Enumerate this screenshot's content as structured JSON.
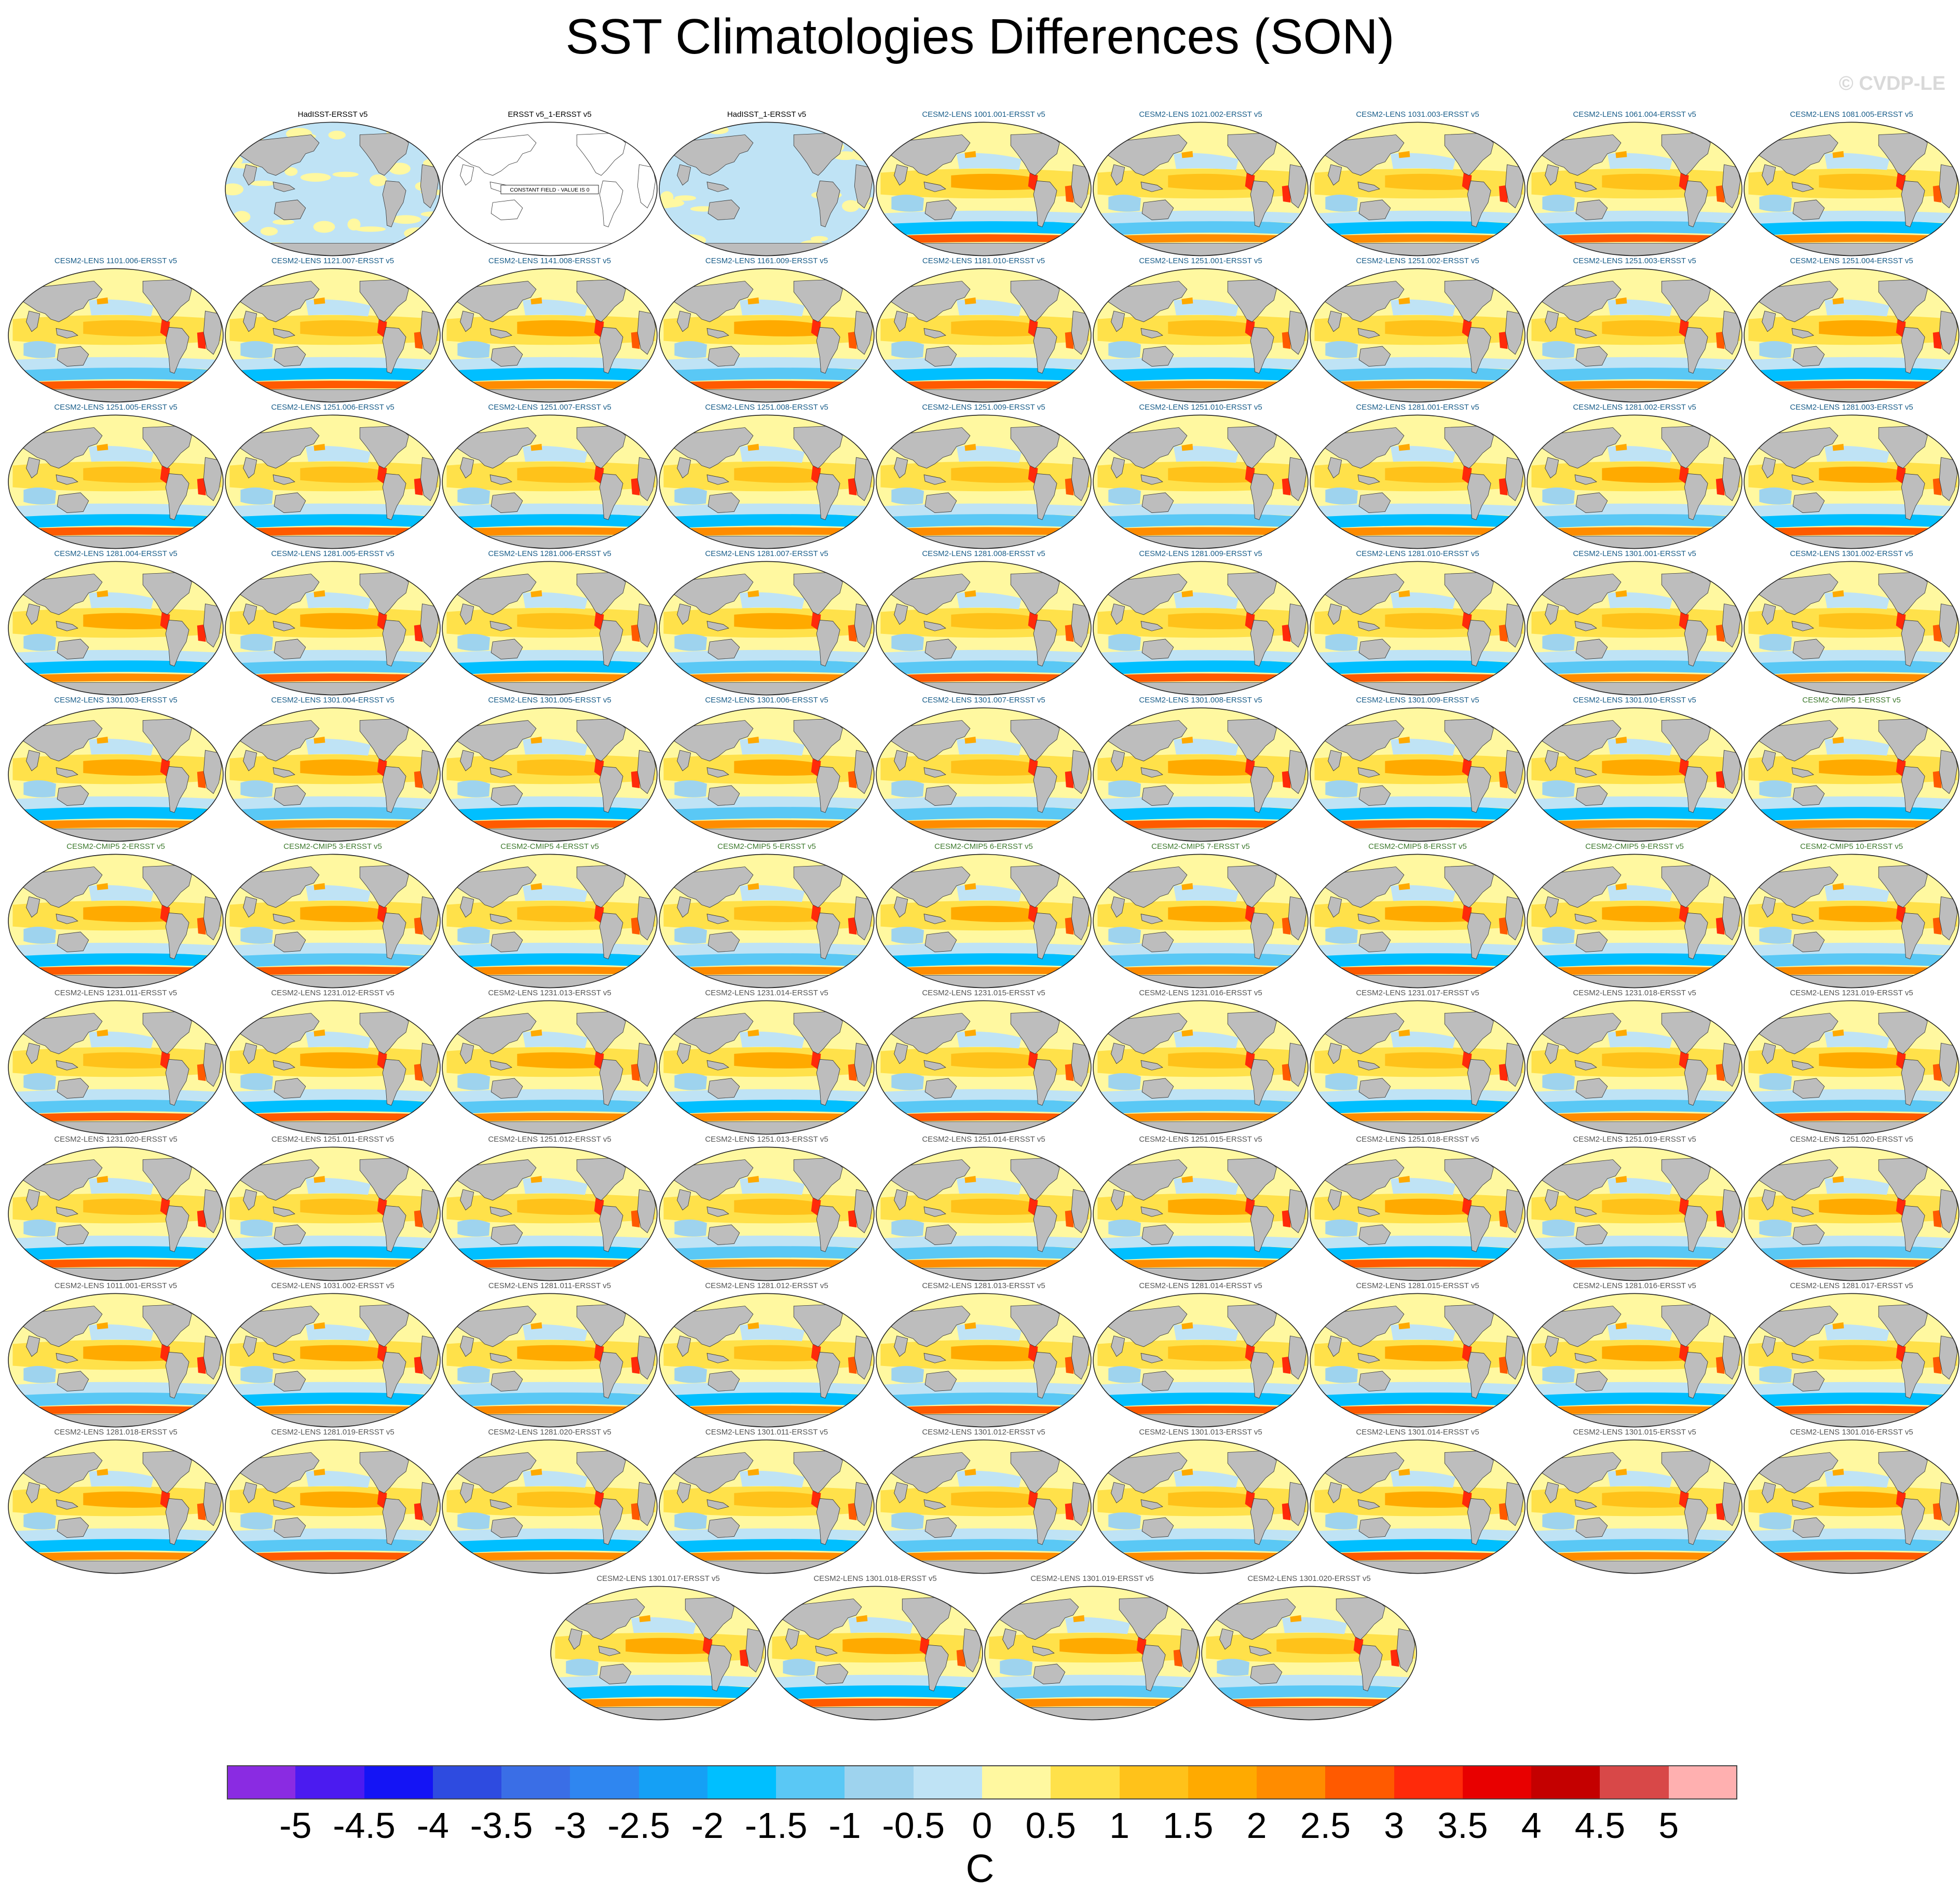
{
  "title": "SST Climatologies Differences (SON)",
  "watermark": "© CVDP-LE",
  "colors": {
    "land": "#bdbdbd",
    "text_obs": "#000000",
    "text_cesm_lens": "#1a5e8a",
    "text_cesm_cmip5": "#3e7a2e",
    "text_gray": "#555555"
  },
  "panels": [
    {
      "title": "HadISST-ERSST v5",
      "kind": "obs"
    },
    {
      "title": "ERSST v5_1-ERSST v5",
      "kind": "constant",
      "note": "CONSTANT FIELD - VALUE IS 0"
    },
    {
      "title": "HadISST_1-ERSST v5",
      "kind": "obs"
    },
    {
      "title": "CESM2-LENS 1001.001-ERSST v5",
      "kind": "model"
    },
    {
      "title": "CESM2-LENS 1021.002-ERSST v5",
      "kind": "model"
    },
    {
      "title": "CESM2-LENS 1031.003-ERSST v5",
      "kind": "model"
    },
    {
      "title": "CESM2-LENS 1061.004-ERSST v5",
      "kind": "model"
    },
    {
      "title": "CESM2-LENS 1081.005-ERSST v5",
      "kind": "model"
    },
    {
      "title": "CESM2-LENS 1101.006-ERSST v5",
      "kind": "model"
    },
    {
      "title": "CESM2-LENS 1121.007-ERSST v5",
      "kind": "model"
    },
    {
      "title": "CESM2-LENS 1141.008-ERSST v5",
      "kind": "model"
    },
    {
      "title": "CESM2-LENS 1161.009-ERSST v5",
      "kind": "model"
    },
    {
      "title": "CESM2-LENS 1181.010-ERSST v5",
      "kind": "model"
    },
    {
      "title": "CESM2-LENS 1251.001-ERSST v5",
      "kind": "model"
    },
    {
      "title": "CESM2-LENS 1251.002-ERSST v5",
      "kind": "model"
    },
    {
      "title": "CESM2-LENS 1251.003-ERSST v5",
      "kind": "model"
    },
    {
      "title": "CESM2-LENS 1251.004-ERSST v5",
      "kind": "model"
    },
    {
      "title": "CESM2-LENS 1251.005-ERSST v5",
      "kind": "model"
    },
    {
      "title": "CESM2-LENS 1251.006-ERSST v5",
      "kind": "model"
    },
    {
      "title": "CESM2-LENS 1251.007-ERSST v5",
      "kind": "model"
    },
    {
      "title": "CESM2-LENS 1251.008-ERSST v5",
      "kind": "model"
    },
    {
      "title": "CESM2-LENS 1251.009-ERSST v5",
      "kind": "model"
    },
    {
      "title": "CESM2-LENS 1251.010-ERSST v5",
      "kind": "model"
    },
    {
      "title": "CESM2-LENS 1281.001-ERSST v5",
      "kind": "model"
    },
    {
      "title": "CESM2-LENS 1281.002-ERSST v5",
      "kind": "model"
    },
    {
      "title": "CESM2-LENS 1281.003-ERSST v5",
      "kind": "model"
    },
    {
      "title": "CESM2-LENS 1281.004-ERSST v5",
      "kind": "model"
    },
    {
      "title": "CESM2-LENS 1281.005-ERSST v5",
      "kind": "model"
    },
    {
      "title": "CESM2-LENS 1281.006-ERSST v5",
      "kind": "model"
    },
    {
      "title": "CESM2-LENS 1281.007-ERSST v5",
      "kind": "model"
    },
    {
      "title": "CESM2-LENS 1281.008-ERSST v5",
      "kind": "model"
    },
    {
      "title": "CESM2-LENS 1281.009-ERSST v5",
      "kind": "model"
    },
    {
      "title": "CESM2-LENS 1281.010-ERSST v5",
      "kind": "model"
    },
    {
      "title": "CESM2-LENS 1301.001-ERSST v5",
      "kind": "model"
    },
    {
      "title": "CESM2-LENS 1301.002-ERSST v5",
      "kind": "model"
    },
    {
      "title": "CESM2-LENS 1301.003-ERSST v5",
      "kind": "model"
    },
    {
      "title": "CESM2-LENS 1301.004-ERSST v5",
      "kind": "model"
    },
    {
      "title": "CESM2-LENS 1301.005-ERSST v5",
      "kind": "model"
    },
    {
      "title": "CESM2-LENS 1301.006-ERSST v5",
      "kind": "model"
    },
    {
      "title": "CESM2-LENS 1301.007-ERSST v5",
      "kind": "model"
    },
    {
      "title": "CESM2-LENS 1301.008-ERSST v5",
      "kind": "model"
    },
    {
      "title": "CESM2-LENS 1301.009-ERSST v5",
      "kind": "model"
    },
    {
      "title": "CESM2-LENS 1301.010-ERSST v5",
      "kind": "model"
    },
    {
      "title": "CESM2-CMIP5 1-ERSST v5",
      "kind": "model"
    },
    {
      "title": "CESM2-CMIP5 2-ERSST v5",
      "kind": "model"
    },
    {
      "title": "CESM2-CMIP5 3-ERSST v5",
      "kind": "model"
    },
    {
      "title": "CESM2-CMIP5 4-ERSST v5",
      "kind": "model"
    },
    {
      "title": "CESM2-CMIP5 5-ERSST v5",
      "kind": "model"
    },
    {
      "title": "CESM2-CMIP5 6-ERSST v5",
      "kind": "model"
    },
    {
      "title": "CESM2-CMIP5 7-ERSST v5",
      "kind": "model"
    },
    {
      "title": "CESM2-CMIP5 8-ERSST v5",
      "kind": "model"
    },
    {
      "title": "CESM2-CMIP5 9-ERSST v5",
      "kind": "model"
    },
    {
      "title": "CESM2-CMIP5 10-ERSST v5",
      "kind": "model"
    },
    {
      "title": "CESM2-LENS 1231.011-ERSST v5",
      "kind": "model"
    },
    {
      "title": "CESM2-LENS 1231.012-ERSST v5",
      "kind": "model"
    },
    {
      "title": "CESM2-LENS 1231.013-ERSST v5",
      "kind": "model"
    },
    {
      "title": "CESM2-LENS 1231.014-ERSST v5",
      "kind": "model"
    },
    {
      "title": "CESM2-LENS 1231.015-ERSST v5",
      "kind": "model"
    },
    {
      "title": "CESM2-LENS 1231.016-ERSST v5",
      "kind": "model"
    },
    {
      "title": "CESM2-LENS 1231.017-ERSST v5",
      "kind": "model"
    },
    {
      "title": "CESM2-LENS 1231.018-ERSST v5",
      "kind": "model"
    },
    {
      "title": "CESM2-LENS 1231.019-ERSST v5",
      "kind": "model"
    },
    {
      "title": "CESM2-LENS 1231.020-ERSST v5",
      "kind": "model"
    },
    {
      "title": "CESM2-LENS 1251.011-ERSST v5",
      "kind": "model"
    },
    {
      "title": "CESM2-LENS 1251.012-ERSST v5",
      "kind": "model"
    },
    {
      "title": "CESM2-LENS 1251.013-ERSST v5",
      "kind": "model"
    },
    {
      "title": "CESM2-LENS 1251.014-ERSST v5",
      "kind": "model"
    },
    {
      "title": "CESM2-LENS 1251.015-ERSST v5",
      "kind": "model"
    },
    {
      "title": "CESM2-LENS 1251.018-ERSST v5",
      "kind": "model"
    },
    {
      "title": "CESM2-LENS 1251.019-ERSST v5",
      "kind": "model"
    },
    {
      "title": "CESM2-LENS 1251.020-ERSST v5",
      "kind": "model"
    },
    {
      "title": "CESM2-LENS 1011.001-ERSST v5",
      "kind": "model"
    },
    {
      "title": "CESM2-LENS 1031.002-ERSST v5",
      "kind": "model"
    },
    {
      "title": "CESM2-LENS 1281.011-ERSST v5",
      "kind": "model"
    },
    {
      "title": "CESM2-LENS 1281.012-ERSST v5",
      "kind": "model"
    },
    {
      "title": "CESM2-LENS 1281.013-ERSST v5",
      "kind": "model"
    },
    {
      "title": "CESM2-LENS 1281.014-ERSST v5",
      "kind": "model"
    },
    {
      "title": "CESM2-LENS 1281.015-ERSST v5",
      "kind": "model"
    },
    {
      "title": "CESM2-LENS 1281.016-ERSST v5",
      "kind": "model"
    },
    {
      "title": "CESM2-LENS 1281.017-ERSST v5",
      "kind": "model"
    },
    {
      "title": "CESM2-LENS 1281.018-ERSST v5",
      "kind": "model"
    },
    {
      "title": "CESM2-LENS 1281.019-ERSST v5",
      "kind": "model"
    },
    {
      "title": "CESM2-LENS 1281.020-ERSST v5",
      "kind": "model"
    },
    {
      "title": "CESM2-LENS 1301.011-ERSST v5",
      "kind": "model"
    },
    {
      "title": "CESM2-LENS 1301.012-ERSST v5",
      "kind": "model"
    },
    {
      "title": "CESM2-LENS 1301.013-ERSST v5",
      "kind": "model"
    },
    {
      "title": "CESM2-LENS 1301.014-ERSST v5",
      "kind": "model"
    },
    {
      "title": "CESM2-LENS 1301.015-ERSST v5",
      "kind": "model"
    },
    {
      "title": "CESM2-LENS 1301.016-ERSST v5",
      "kind": "model"
    },
    {
      "title": "CESM2-LENS 1301.017-ERSST v5",
      "kind": "model"
    },
    {
      "title": "CESM2-LENS 1301.018-ERSST v5",
      "kind": "model"
    },
    {
      "title": "CESM2-LENS 1301.019-ERSST v5",
      "kind": "model"
    },
    {
      "title": "CESM2-LENS 1301.020-ERSST v5",
      "kind": "model"
    }
  ],
  "colorbar": {
    "colors": [
      "#8a2be2",
      "#4b1bf0",
      "#1414f5",
      "#2e4be0",
      "#3a6ee6",
      "#2f86f0",
      "#15a0f5",
      "#00bfff",
      "#5ac8f5",
      "#9ed3ee",
      "#bfe3f5",
      "#fff8a0",
      "#ffe14a",
      "#ffc21a",
      "#ffaa00",
      "#ff8c00",
      "#ff5a00",
      "#ff2a0a",
      "#e80000",
      "#c40000",
      "#d84848",
      "#ffb0b0"
    ],
    "labels": [
      "-5",
      "-4.5",
      "-4",
      "-3.5",
      "-3",
      "-2.5",
      "-2",
      "-1.5",
      "-1",
      "-0.5",
      "0",
      "0.5",
      "1",
      "1.5",
      "2",
      "2.5",
      "3",
      "3.5",
      "4",
      "4.5",
      "5"
    ],
    "units": "C"
  }
}
